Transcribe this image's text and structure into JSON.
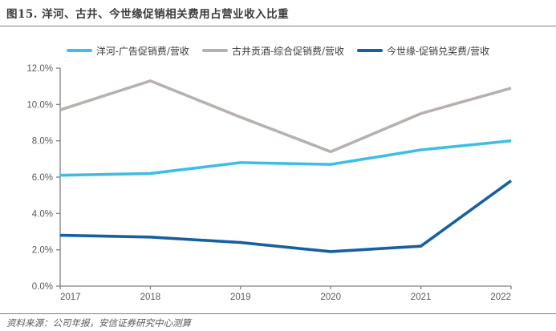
{
  "title": "图15. 洋河、古井、今世缘促销相关费用占营业收入比重",
  "source_note": "资料来源：公司年报，安信证券研究中心测算",
  "legend": [
    {
      "label": "洋河-广告促销费/营收",
      "color": "#3CBEE8"
    },
    {
      "label": "古井贡酒-综合促销费/营收",
      "color": "#B7B1AE"
    },
    {
      "label": "今世缘-促销兑奖费/营收",
      "color": "#1560A3"
    }
  ],
  "chart_data": {
    "type": "line",
    "title": "图15. 洋河、古井、今世缘促销相关费用占营业收入比重",
    "categories": [
      "2017",
      "2018",
      "2019",
      "2020",
      "2021",
      "2022"
    ],
    "series": [
      {
        "id": "yanghe",
        "name": "洋河-广告促销费/营收",
        "color": "#3CBEE8",
        "values": [
          6.1,
          6.2,
          6.8,
          6.7,
          7.5,
          8.0
        ]
      },
      {
        "id": "gujing",
        "name": "古井贡酒-综合促销费/营收",
        "color": "#B7B1AE",
        "values": [
          9.7,
          11.3,
          9.3,
          7.4,
          9.5,
          10.9
        ]
      },
      {
        "id": "jinshiyuan",
        "name": "今世缘-促销兑奖费/营收",
        "color": "#1560A3",
        "values": [
          2.8,
          2.7,
          2.4,
          1.9,
          2.2,
          5.8
        ]
      }
    ],
    "ylim": [
      0,
      12
    ],
    "ytick_labels": [
      "0.0%",
      "2.0%",
      "4.0%",
      "6.0%",
      "8.0%",
      "10.0%",
      "12.0%"
    ],
    "xlabel": "",
    "ylabel": "",
    "grid": false,
    "legend_position": "top",
    "axis_color": "#808080",
    "tick_label_color": "#595959"
  }
}
